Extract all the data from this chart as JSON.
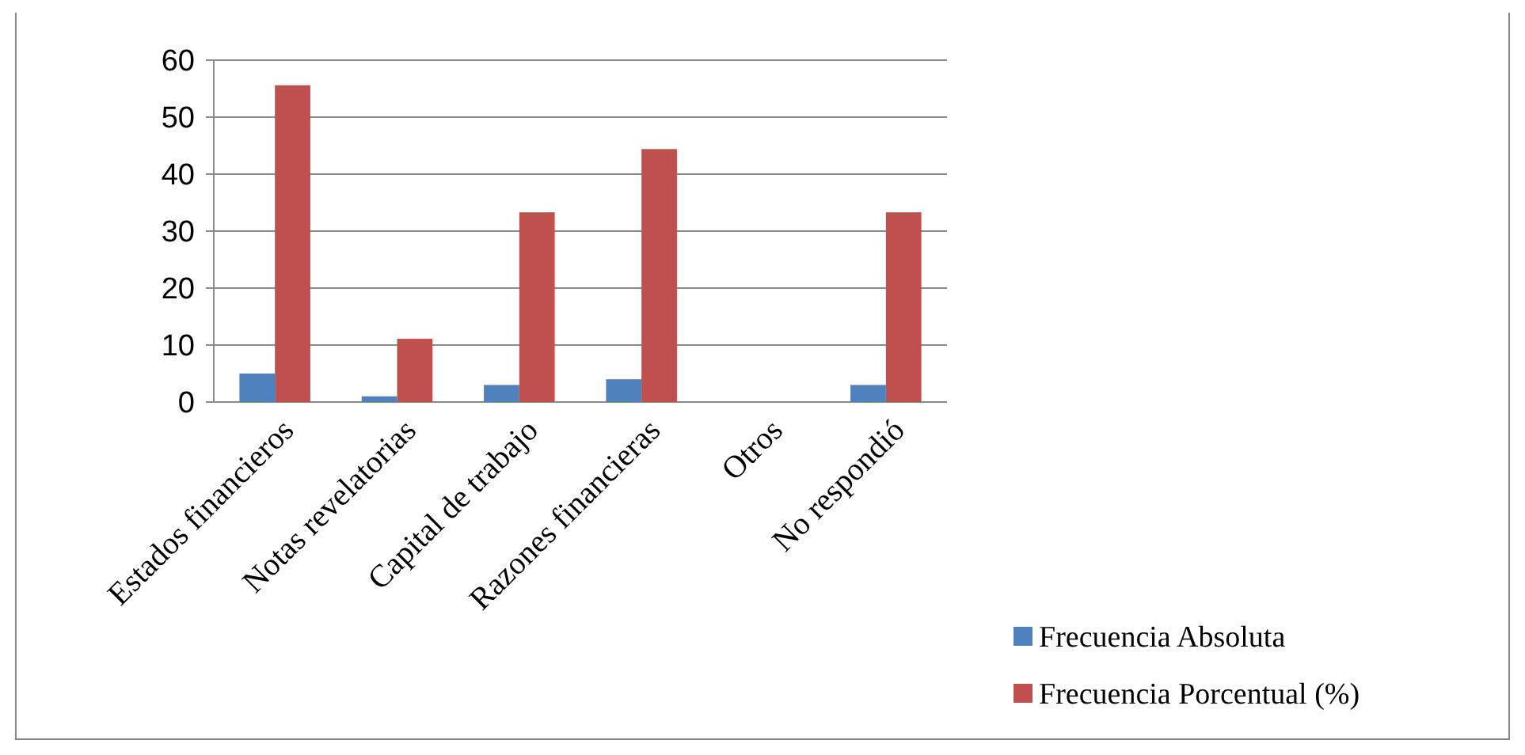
{
  "chart_data": {
    "type": "bar",
    "categories": [
      "Estados financieros",
      "Notas revelatorias",
      "Capital de trabajo",
      "Razones financieras",
      "Otros",
      "No respondió"
    ],
    "series": [
      {
        "name": "Frecuencia Absoluta",
        "color": "#4f81bd",
        "values": [
          5,
          1,
          3,
          4,
          0,
          3
        ]
      },
      {
        "name": "Frecuencia Porcentual (%)",
        "color": "#c0504d",
        "values": [
          55.6,
          11.1,
          33.3,
          44.4,
          0,
          33.3
        ]
      }
    ],
    "ylim": [
      0,
      60
    ],
    "yticks": [
      0,
      10,
      20,
      30,
      40,
      50,
      60
    ],
    "grid": "y",
    "legend": "right"
  }
}
